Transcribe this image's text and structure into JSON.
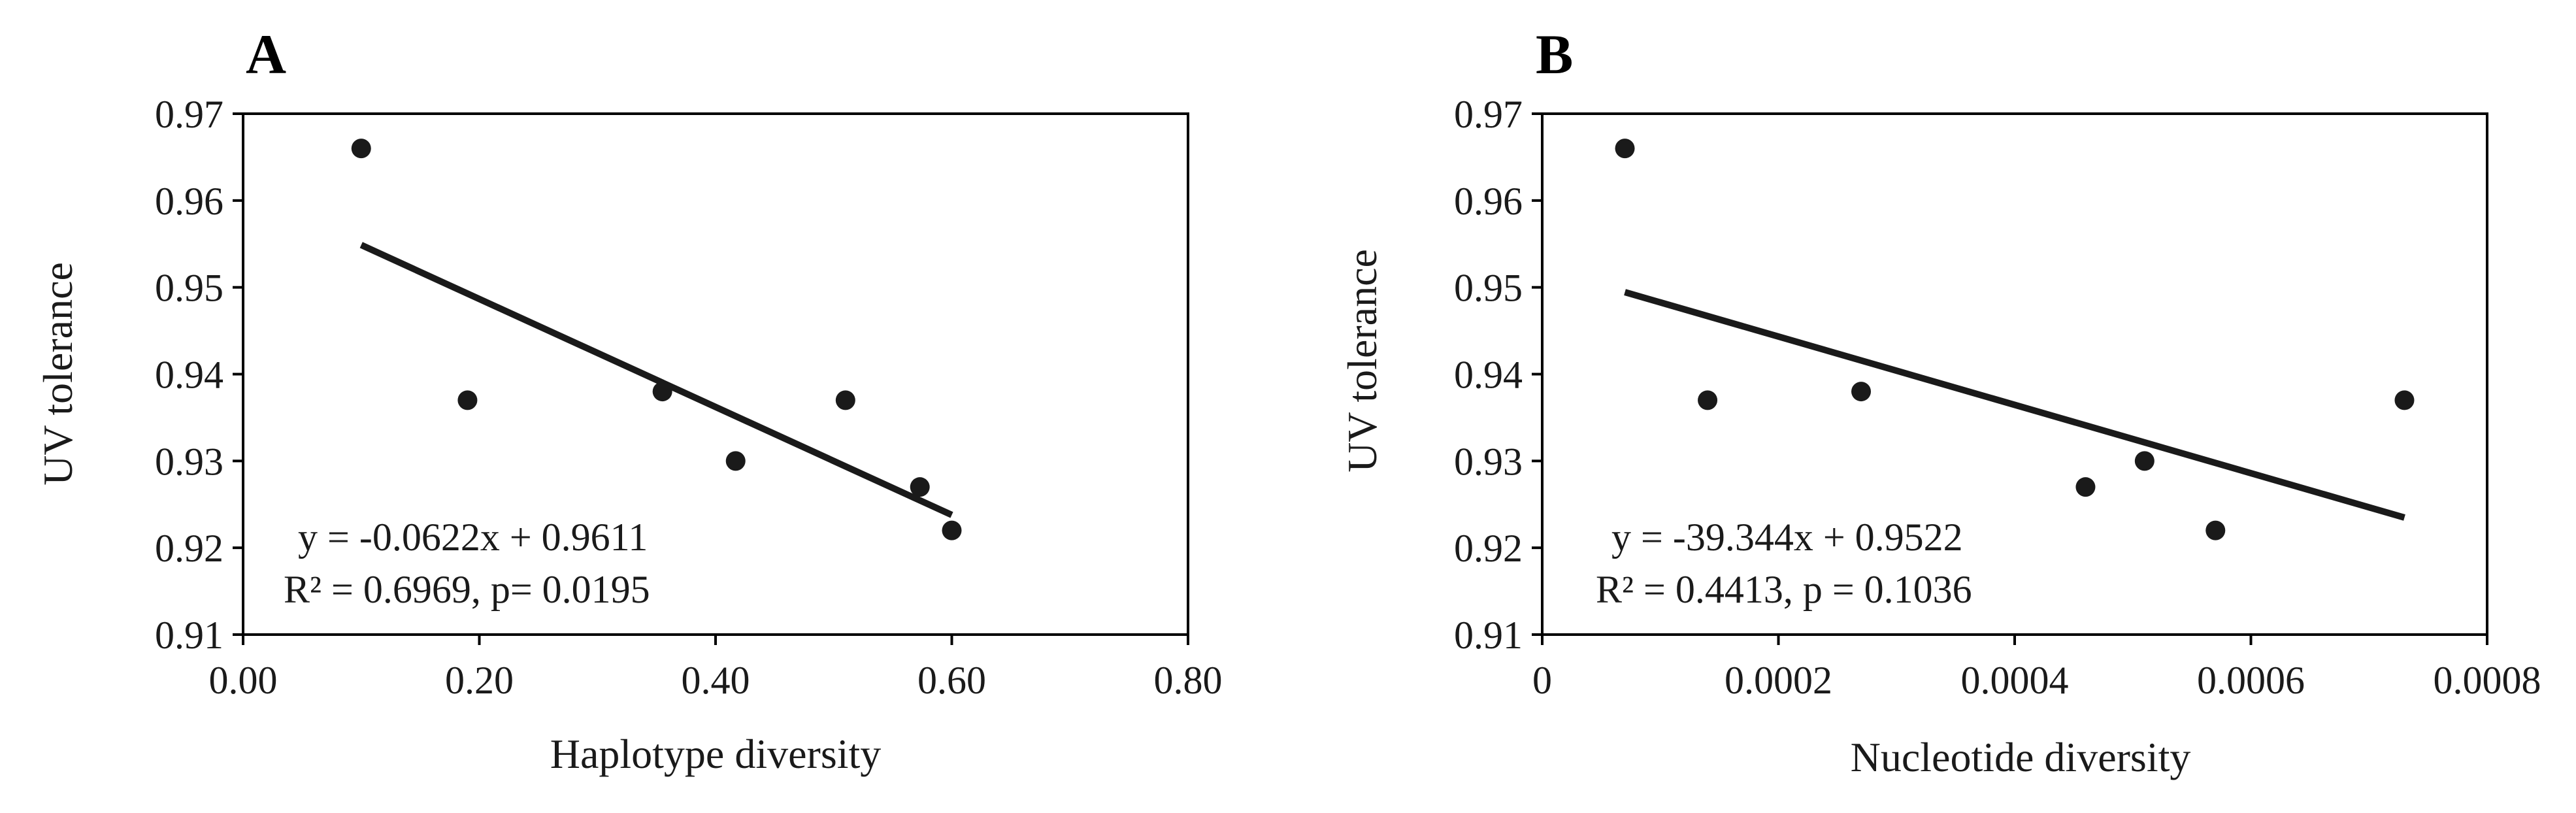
{
  "chart_data": [
    {
      "type": "scatter",
      "panel_label": "A",
      "xlabel": "Haplotype diversity",
      "ylabel": "UV tolerance",
      "xlim": [
        0,
        0.8
      ],
      "ylim": [
        0.91,
        0.97
      ],
      "x_ticks": [
        "0.00",
        "0.20",
        "0.40",
        "0.60",
        "0.80"
      ],
      "x_tick_values": [
        0,
        0.2,
        0.4,
        0.6,
        0.8
      ],
      "y_ticks": [
        "0.91",
        "0.92",
        "0.93",
        "0.94",
        "0.95",
        "0.96",
        "0.97"
      ],
      "y_tick_values": [
        0.91,
        0.92,
        0.93,
        0.94,
        0.95,
        0.96,
        0.97
      ],
      "points": [
        {
          "x": 0.1,
          "y": 0.966
        },
        {
          "x": 0.19,
          "y": 0.937
        },
        {
          "x": 0.355,
          "y": 0.938
        },
        {
          "x": 0.417,
          "y": 0.93
        },
        {
          "x": 0.51,
          "y": 0.937
        },
        {
          "x": 0.573,
          "y": 0.927
        },
        {
          "x": 0.6,
          "y": 0.922
        }
      ],
      "trendline": {
        "slope": -0.0622,
        "intercept": 0.9611,
        "x_range": [
          0.1,
          0.6
        ]
      },
      "equation": "y = -0.0622x + 0.9611",
      "stats": "R² = 0.6969, p=  0.0195",
      "grid": false,
      "legend": false
    },
    {
      "type": "scatter",
      "panel_label": "B",
      "xlabel": "Nucleotide diversity",
      "ylabel": "UV tolerance",
      "xlim": [
        0,
        0.0008
      ],
      "ylim": [
        0.91,
        0.97
      ],
      "x_ticks": [
        "0",
        "0.0002",
        "0.0004",
        "0.0006",
        "0.0008"
      ],
      "x_tick_values": [
        0,
        0.0002,
        0.0004,
        0.0006,
        0.0008
      ],
      "y_ticks": [
        "0.91",
        "0.92",
        "0.93",
        "0.94",
        "0.95",
        "0.96",
        "0.97"
      ],
      "y_tick_values": [
        0.91,
        0.92,
        0.93,
        0.94,
        0.95,
        0.96,
        0.97
      ],
      "points": [
        {
          "x": 7e-05,
          "y": 0.966
        },
        {
          "x": 0.00014,
          "y": 0.937
        },
        {
          "x": 0.00027,
          "y": 0.938
        },
        {
          "x": 0.00046,
          "y": 0.927
        },
        {
          "x": 0.00051,
          "y": 0.93
        },
        {
          "x": 0.00057,
          "y": 0.922
        },
        {
          "x": 0.00073,
          "y": 0.937
        }
      ],
      "trendline": {
        "slope": -39.344,
        "intercept": 0.9522,
        "x_range": [
          7e-05,
          0.00073
        ]
      },
      "equation": "y = -39.344x + 0.9522",
      "stats": "R² = 0.4413, p = 0.1036",
      "grid": false,
      "legend": false
    }
  ]
}
